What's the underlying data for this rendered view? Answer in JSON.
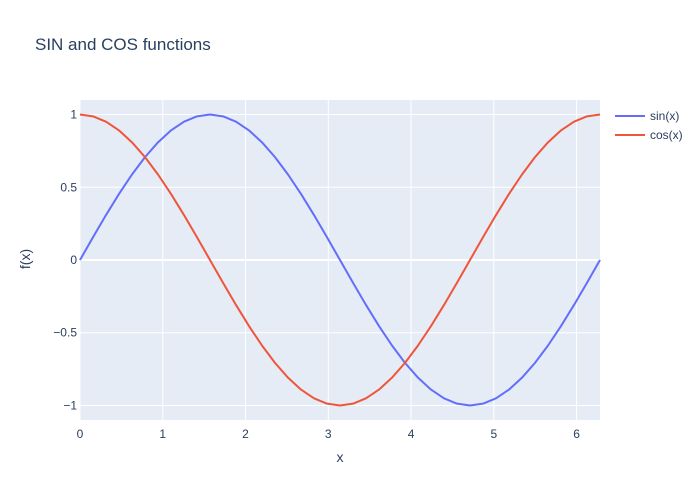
{
  "chart_data": {
    "type": "line",
    "title": "SIN and COS functions",
    "xlabel": "x",
    "ylabel": "f(x)",
    "xlim": [
      0,
      6.2832
    ],
    "ylim": [
      -1.1,
      1.1
    ],
    "xticks": [
      0,
      1,
      2,
      3,
      4,
      5,
      6
    ],
    "xtick_labels": [
      "0",
      "1",
      "2",
      "3",
      "4",
      "5",
      "6"
    ],
    "yticks": [
      -1,
      -0.5,
      0,
      0.5,
      1
    ],
    "ytick_labels": [
      "−1",
      "−0.5",
      "0",
      "0.5",
      "1"
    ],
    "grid": true,
    "legend_position": "top-right outside",
    "background_color": "#e5ecf6",
    "x": [
      0,
      0.1571,
      0.3142,
      0.4712,
      0.6283,
      0.7854,
      0.9425,
      1.0996,
      1.2566,
      1.4137,
      1.5708,
      1.7279,
      1.885,
      2.042,
      2.1991,
      2.3562,
      2.5133,
      2.6704,
      2.8274,
      2.9845,
      3.1416,
      3.2987,
      3.4558,
      3.6128,
      3.7699,
      3.927,
      4.0841,
      4.2412,
      4.3982,
      4.5553,
      4.7124,
      4.8695,
      5.0265,
      5.1836,
      5.3407,
      5.4978,
      5.6549,
      5.812,
      5.969,
      6.1261,
      6.2832
    ],
    "series": [
      {
        "name": "sin(x)",
        "color": "#636efa",
        "values": [
          0,
          0.1564,
          0.309,
          0.454,
          0.5878,
          0.7071,
          0.809,
          0.891,
          0.9511,
          0.9877,
          1,
          0.9877,
          0.9511,
          0.891,
          0.809,
          0.7071,
          0.5878,
          0.454,
          0.309,
          0.1564,
          0,
          -0.1564,
          -0.309,
          -0.454,
          -0.5878,
          -0.7071,
          -0.809,
          -0.891,
          -0.9511,
          -0.9877,
          -1,
          -0.9877,
          -0.9511,
          -0.891,
          -0.809,
          -0.7071,
          -0.5878,
          -0.454,
          -0.309,
          -0.1564,
          0
        ]
      },
      {
        "name": "cos(x)",
        "color": "#ef553b",
        "values": [
          1,
          0.9877,
          0.9511,
          0.891,
          0.809,
          0.7071,
          0.5878,
          0.454,
          0.309,
          0.1564,
          0,
          -0.1564,
          -0.309,
          -0.454,
          -0.5878,
          -0.7071,
          -0.809,
          -0.891,
          -0.9511,
          -0.9877,
          -1,
          -0.9877,
          -0.9511,
          -0.891,
          -0.809,
          -0.7071,
          -0.5878,
          -0.454,
          -0.309,
          -0.1564,
          0,
          0.1564,
          0.309,
          0.454,
          0.5878,
          0.7071,
          0.809,
          0.891,
          0.9511,
          0.9877,
          1
        ]
      }
    ]
  }
}
